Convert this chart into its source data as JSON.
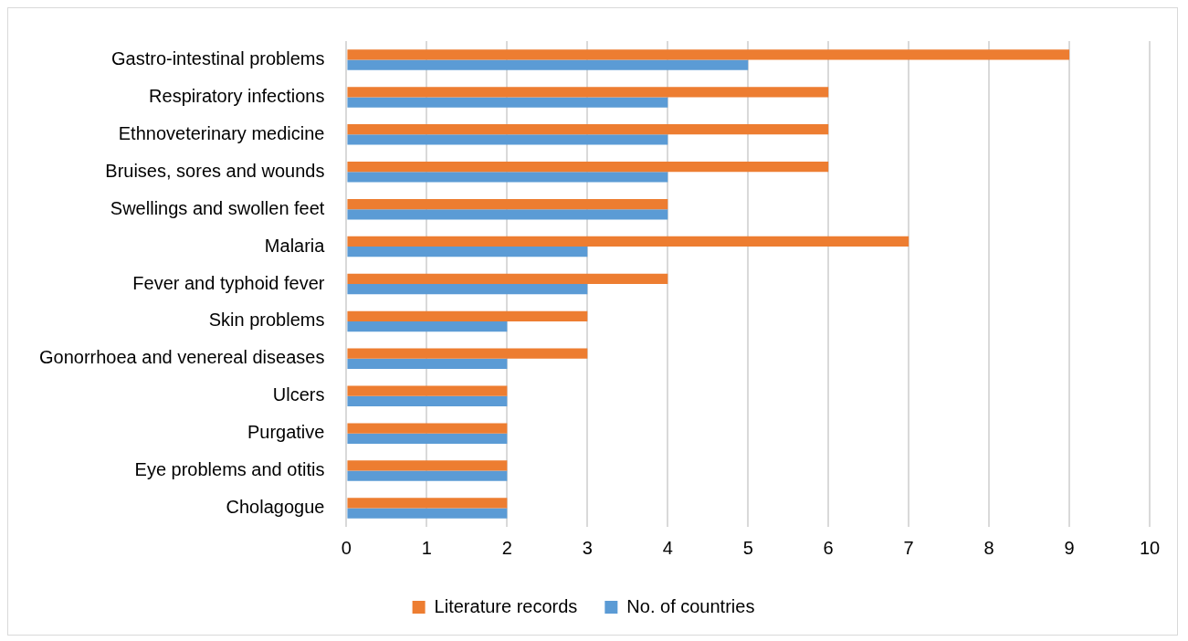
{
  "chart_data": {
    "type": "bar",
    "orientation": "horizontal",
    "categories": [
      "Gastro-intestinal problems",
      "Respiratory infections",
      "Ethnoveterinary medicine",
      "Bruises, sores and wounds",
      "Swellings and swollen feet",
      "Malaria",
      "Fever and typhoid fever",
      "Skin problems",
      "Gonorrhoea and venereal diseases",
      "Ulcers",
      "Purgative",
      "Eye problems and otitis",
      "Cholagogue"
    ],
    "series": [
      {
        "name": "Literature records",
        "color": "#ed7d31",
        "values": [
          9,
          6,
          6,
          6,
          4,
          7,
          4,
          3,
          3,
          2,
          2,
          2,
          2
        ]
      },
      {
        "name": "No. of countries",
        "color": "#5b9bd5",
        "values": [
          5,
          4,
          4,
          4,
          4,
          3,
          3,
          2,
          2,
          2,
          2,
          2,
          2
        ]
      }
    ],
    "xlim": [
      0,
      10
    ],
    "xticks": [
      0,
      1,
      2,
      3,
      4,
      5,
      6,
      7,
      8,
      9,
      10
    ],
    "grid": "x",
    "legend": "bottom"
  }
}
